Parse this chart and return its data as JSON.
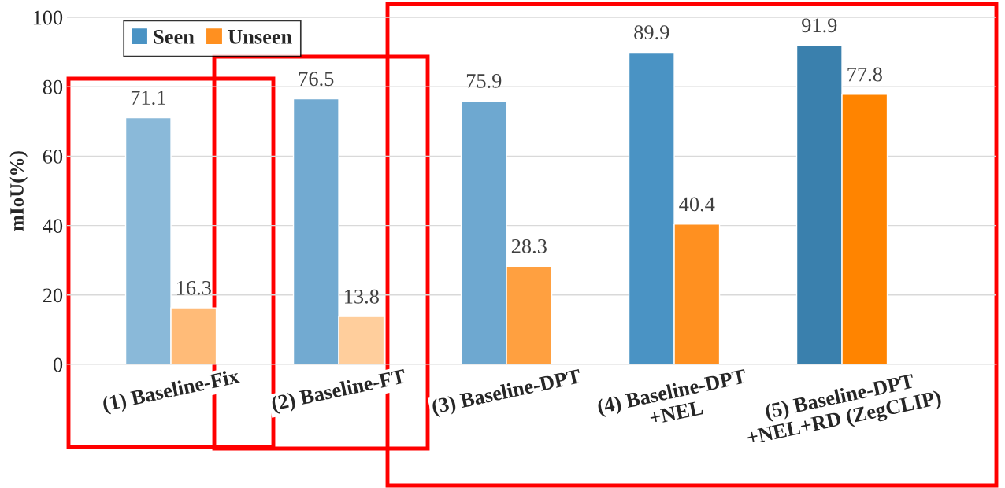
{
  "chart_data": {
    "type": "bar",
    "ylabel": "mIoU(%)",
    "categories": [
      "(1) Baseline-Fix",
      "(2) Baseline-FT",
      "(3) Baseline-DPT",
      "(4) Baseline-DPT\n+NEL",
      "(5) Baseline-DPT\n+NEL+RD (ZegCLIP)"
    ],
    "series": [
      {
        "name": "Seen",
        "color": "#4a93c4",
        "colors": [
          "#8ab9d9",
          "#72aad1",
          "#6ea8d0",
          "#4a93c4",
          "#3a80ad"
        ],
        "values": [
          71.1,
          76.5,
          75.9,
          89.9,
          91.9
        ]
      },
      {
        "name": "Unseen",
        "color": "#ff9020",
        "colors": [
          "#ffbb78",
          "#ffce9c",
          "#ffa040",
          "#ff9020",
          "#ff8400"
        ],
        "values": [
          16.3,
          13.8,
          28.3,
          40.4,
          77.8
        ]
      }
    ],
    "ylim": [
      0,
      100
    ],
    "yticks": [
      0,
      20,
      40,
      60,
      80,
      100
    ],
    "grid": "y",
    "legend": "top left",
    "data_labels": true
  }
}
